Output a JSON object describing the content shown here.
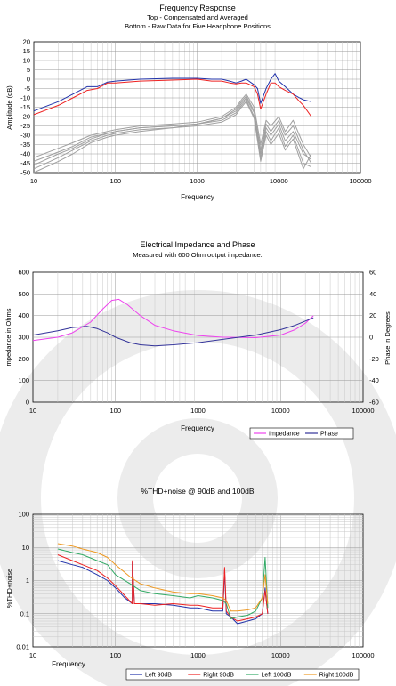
{
  "chart_data": [
    {
      "type": "line",
      "title": "Frequency Response",
      "subtitle_lines": [
        "Top -  Compensated and Averaged",
        "Bottom - Raw Data for Five Headphone Positions"
      ],
      "xlabel": "Frequency",
      "ylabel": "Amplitude (dB)",
      "x_scale": "log",
      "xlim": [
        10,
        100000
      ],
      "ylim": [
        -50,
        20
      ],
      "x_ticks": [
        "10",
        "100",
        "1000",
        "10000",
        "100000"
      ],
      "y_ticks": [
        "20",
        "15",
        "10",
        "5",
        "0",
        "-5",
        "-10",
        "-15",
        "-20",
        "-25",
        "-30",
        "-35",
        "-40",
        "-45",
        "-50"
      ],
      "grid": true,
      "colors": {
        "left": "#2233aa",
        "right": "#ee2222",
        "raw": "#a0a0a0"
      },
      "series": [
        {
          "role": "compensated-left",
          "color": "#2233aa",
          "x": [
            10,
            20,
            30,
            45,
            60,
            80,
            100,
            200,
            500,
            1000,
            1500,
            2000,
            2500,
            3000,
            3500,
            4000,
            5000,
            5500,
            6000,
            7000,
            8000,
            9000,
            10000,
            12000,
            15000,
            18000,
            20000,
            25000
          ],
          "y": [
            -17,
            -12,
            -8,
            -4,
            -4,
            -1.5,
            -1,
            0,
            0.5,
            0.5,
            0,
            0,
            -1,
            -2,
            -1,
            0,
            -3,
            -5,
            -13,
            -5,
            0,
            3,
            -1,
            -4,
            -8,
            -10,
            -11,
            -12
          ]
        },
        {
          "role": "compensated-right",
          "color": "#ee2222",
          "x": [
            10,
            20,
            30,
            45,
            60,
            80,
            100,
            200,
            500,
            1000,
            1500,
            2000,
            2500,
            3000,
            3500,
            4000,
            5000,
            5500,
            6000,
            7000,
            8000,
            9000,
            10000,
            12000,
            15000,
            18000,
            20000,
            25000
          ],
          "y": [
            -19,
            -14,
            -10,
            -6,
            -5,
            -2,
            -2,
            -1,
            -0.5,
            0,
            -1,
            -1,
            -2,
            -2.5,
            -2,
            -2,
            -4,
            -8,
            -16,
            -8,
            -2,
            -2,
            -4,
            -6,
            -8,
            -12,
            -14,
            -20
          ]
        },
        {
          "role": "raw-position-1",
          "color": "#a0a0a0",
          "x": [
            10,
            20,
            30,
            50,
            80,
            100,
            200,
            500,
            1000,
            2000,
            3000,
            3500,
            4000,
            5000,
            6000,
            7000,
            8000,
            10000,
            12000,
            15000,
            20000,
            25000
          ],
          "y": [
            -42,
            -37,
            -34,
            -30,
            -28,
            -27,
            -25,
            -24,
            -23,
            -20,
            -15,
            -11,
            -8,
            -15,
            -35,
            -22,
            -25,
            -20,
            -28,
            -22,
            -35,
            -42
          ]
        },
        {
          "role": "raw-position-2",
          "color": "#a0a0a0",
          "x": [
            10,
            20,
            30,
            50,
            80,
            100,
            200,
            500,
            1000,
            2000,
            3000,
            3500,
            4000,
            5000,
            6000,
            7000,
            8000,
            10000,
            12000,
            15000,
            20000,
            25000
          ],
          "y": [
            -44,
            -39,
            -36,
            -31,
            -29,
            -28,
            -26,
            -25,
            -24,
            -21,
            -16,
            -12,
            -9,
            -17,
            -38,
            -24,
            -28,
            -22,
            -30,
            -25,
            -38,
            -45
          ]
        },
        {
          "role": "raw-position-3",
          "color": "#a0a0a0",
          "x": [
            10,
            20,
            30,
            50,
            80,
            100,
            200,
            500,
            1000,
            2000,
            3000,
            3500,
            4000,
            5000,
            6000,
            7000,
            8000,
            10000,
            12000,
            15000,
            20000,
            25000
          ],
          "y": [
            -46,
            -40,
            -37,
            -32,
            -29,
            -28,
            -26,
            -25,
            -24,
            -21,
            -17,
            -13,
            -10,
            -18,
            -40,
            -26,
            -30,
            -24,
            -33,
            -28,
            -40,
            -43
          ]
        },
        {
          "role": "raw-position-4",
          "color": "#a0a0a0",
          "x": [
            10,
            20,
            30,
            50,
            80,
            100,
            200,
            500,
            1000,
            2000,
            3000,
            3500,
            4000,
            5000,
            6000,
            7000,
            8000,
            10000,
            12000,
            15000,
            20000,
            25000
          ],
          "y": [
            -48,
            -42,
            -38,
            -33,
            -30,
            -29,
            -27,
            -26,
            -24,
            -22,
            -18,
            -14,
            -11,
            -20,
            -42,
            -28,
            -33,
            -26,
            -36,
            -30,
            -45,
            -47
          ]
        },
        {
          "role": "raw-position-5",
          "color": "#a0a0a0",
          "x": [
            10,
            20,
            30,
            50,
            80,
            100,
            200,
            500,
            1000,
            2000,
            3000,
            3500,
            4000,
            5000,
            6000,
            7000,
            8000,
            10000,
            12000,
            15000,
            20000,
            25000
          ],
          "y": [
            -50,
            -44,
            -40,
            -34,
            -31,
            -30,
            -28,
            -26,
            -25,
            -23,
            -19,
            -15,
            -12,
            -21,
            -44,
            -30,
            -35,
            -29,
            -38,
            -32,
            -48,
            -40
          ]
        }
      ]
    },
    {
      "type": "line",
      "title": "Electrical Impedance and Phase",
      "subtitle_lines": [
        "Measured with 600 Ohm output impedance."
      ],
      "xlabel": "Frequency",
      "ylabel": "Impedance in Ohms",
      "y2label": "Phase in Degrees",
      "x_scale": "log",
      "xlim": [
        10,
        100000
      ],
      "ylim": [
        0,
        600
      ],
      "y2lim": [
        -60,
        60
      ],
      "x_ticks": [
        "10",
        "100",
        "1000",
        "10000",
        "100000"
      ],
      "y_ticks": [
        "600",
        "500",
        "400",
        "300",
        "200",
        "100",
        "0"
      ],
      "y2_ticks": [
        "60",
        "40",
        "20",
        "0",
        "-20",
        "-40",
        "-60"
      ],
      "grid": true,
      "legend": "bottom-right",
      "series": [
        {
          "name": "Impedance",
          "color": "#ee44ee",
          "axis": "left",
          "x": [
            10,
            20,
            30,
            50,
            70,
            90,
            110,
            140,
            200,
            300,
            500,
            1000,
            2000,
            5000,
            10000,
            15000,
            20000,
            25000
          ],
          "y": [
            285,
            300,
            320,
            370,
            430,
            470,
            475,
            450,
            400,
            355,
            330,
            308,
            300,
            298,
            310,
            335,
            365,
            400
          ]
        },
        {
          "name": "Phase",
          "color": "#333399",
          "axis": "right",
          "x": [
            10,
            20,
            30,
            45,
            60,
            80,
            100,
            150,
            200,
            300,
            500,
            1000,
            2000,
            5000,
            10000,
            15000,
            20000,
            25000
          ],
          "y": [
            2,
            6,
            9,
            10,
            8,
            4,
            0,
            -5,
            -7,
            -8,
            -7,
            -5,
            -2,
            2,
            7,
            11,
            15,
            18
          ]
        }
      ]
    },
    {
      "type": "line",
      "title": "%THD+noise @ 90dB and 100dB",
      "xlabel": "Frequency",
      "ylabel": "%THD+noise",
      "x_scale": "log",
      "y_scale": "log",
      "xlim": [
        10,
        100000
      ],
      "ylim": [
        0.01,
        100
      ],
      "x_ticks": [
        "10",
        "100",
        "1000",
        "10000",
        "100000"
      ],
      "y_ticks": [
        "100",
        "10",
        "1",
        "0.1",
        "0.01"
      ],
      "grid": true,
      "legend": "bottom-right",
      "series": [
        {
          "name": "Left 90dB",
          "color": "#2233aa",
          "x": [
            20,
            30,
            40,
            60,
            80,
            100,
            130,
            160,
            160,
            170,
            200,
            300,
            500,
            800,
            1000,
            1500,
            2000,
            2100,
            2200,
            2500,
            3000,
            4000,
            5000,
            6000,
            6500,
            7000
          ],
          "y": [
            4,
            3,
            2.5,
            1.5,
            1.0,
            0.6,
            0.3,
            0.2,
            3.5,
            0.2,
            0.2,
            0.2,
            0.18,
            0.15,
            0.15,
            0.12,
            0.12,
            2.0,
            0.1,
            0.08,
            0.05,
            0.06,
            0.07,
            0.1,
            0.6,
            0.1
          ]
        },
        {
          "name": "Right 90dB",
          "color": "#ee2222",
          "x": [
            20,
            30,
            40,
            60,
            80,
            100,
            130,
            160,
            160,
            170,
            200,
            300,
            500,
            800,
            1000,
            1500,
            2000,
            2100,
            2200,
            2500,
            3000,
            4000,
            5000,
            6000,
            6500,
            7000
          ],
          "y": [
            6,
            4,
            3,
            2,
            1.2,
            0.7,
            0.35,
            0.2,
            4.0,
            0.2,
            0.2,
            0.18,
            0.2,
            0.18,
            0.18,
            0.15,
            0.15,
            2.5,
            0.12,
            0.08,
            0.06,
            0.07,
            0.08,
            0.1,
            0.5,
            0.1
          ]
        },
        {
          "name": "Left 100dB",
          "color": "#33aa66",
          "x": [
            20,
            30,
            40,
            60,
            80,
            100,
            150,
            200,
            300,
            500,
            800,
            1000,
            1500,
            2000,
            2200,
            2500,
            3000,
            4000,
            5000,
            6000,
            6500,
            7000
          ],
          "y": [
            9,
            7,
            6,
            4,
            3,
            1.5,
            0.8,
            0.5,
            0.4,
            0.35,
            0.3,
            0.35,
            0.3,
            0.25,
            0.2,
            0.07,
            0.08,
            0.09,
            0.12,
            0.3,
            5.0,
            0.15
          ]
        },
        {
          "name": "Right 100dB",
          "color": "#ee9922",
          "x": [
            20,
            30,
            40,
            60,
            80,
            100,
            150,
            200,
            300,
            500,
            800,
            1000,
            1500,
            2000,
            2200,
            2500,
            3000,
            4000,
            5000,
            6000,
            6500,
            7000
          ],
          "y": [
            13,
            11,
            9,
            7,
            5,
            3,
            1.3,
            0.8,
            0.6,
            0.45,
            0.4,
            0.4,
            0.35,
            0.3,
            0.25,
            0.12,
            0.12,
            0.13,
            0.15,
            0.3,
            1.5,
            0.2
          ]
        }
      ]
    }
  ]
}
